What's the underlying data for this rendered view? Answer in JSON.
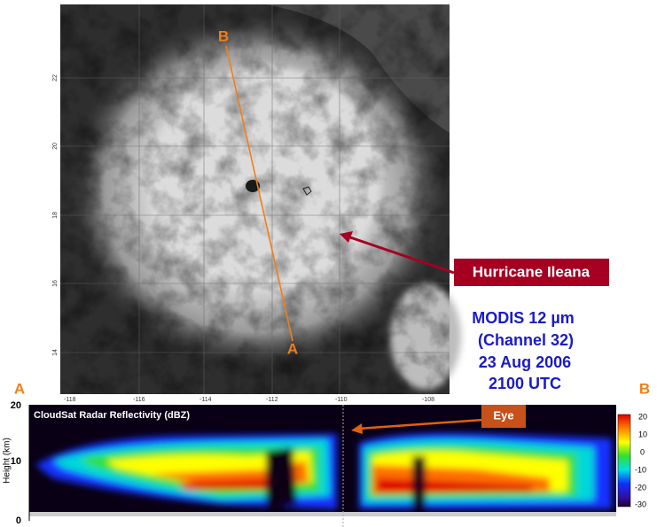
{
  "satellite_image": {
    "lon_labels": [
      "-118",
      "-116",
      "-114",
      "-112",
      "-110",
      "-108"
    ],
    "lat_labels": [
      "22",
      "20",
      "18",
      "16",
      "14"
    ],
    "track_end": "B",
    "track_start": "A",
    "callout": "Hurricane Ileana",
    "caption": [
      "MODIS 12 µm",
      "(Channel 32)",
      "23 Aug 2006",
      "2100 UTC"
    ]
  },
  "cross_section": {
    "left_end": "A",
    "right_end": "B",
    "title": "CloudSat Radar Reflectivity (dBZ)",
    "y_axis_label": "Height (km)",
    "y_ticks": [
      "20",
      "10",
      "0"
    ],
    "callout": "Eye",
    "colorbar_ticks": [
      "20",
      "10",
      "0",
      "-10",
      "-20",
      "-30"
    ]
  }
}
